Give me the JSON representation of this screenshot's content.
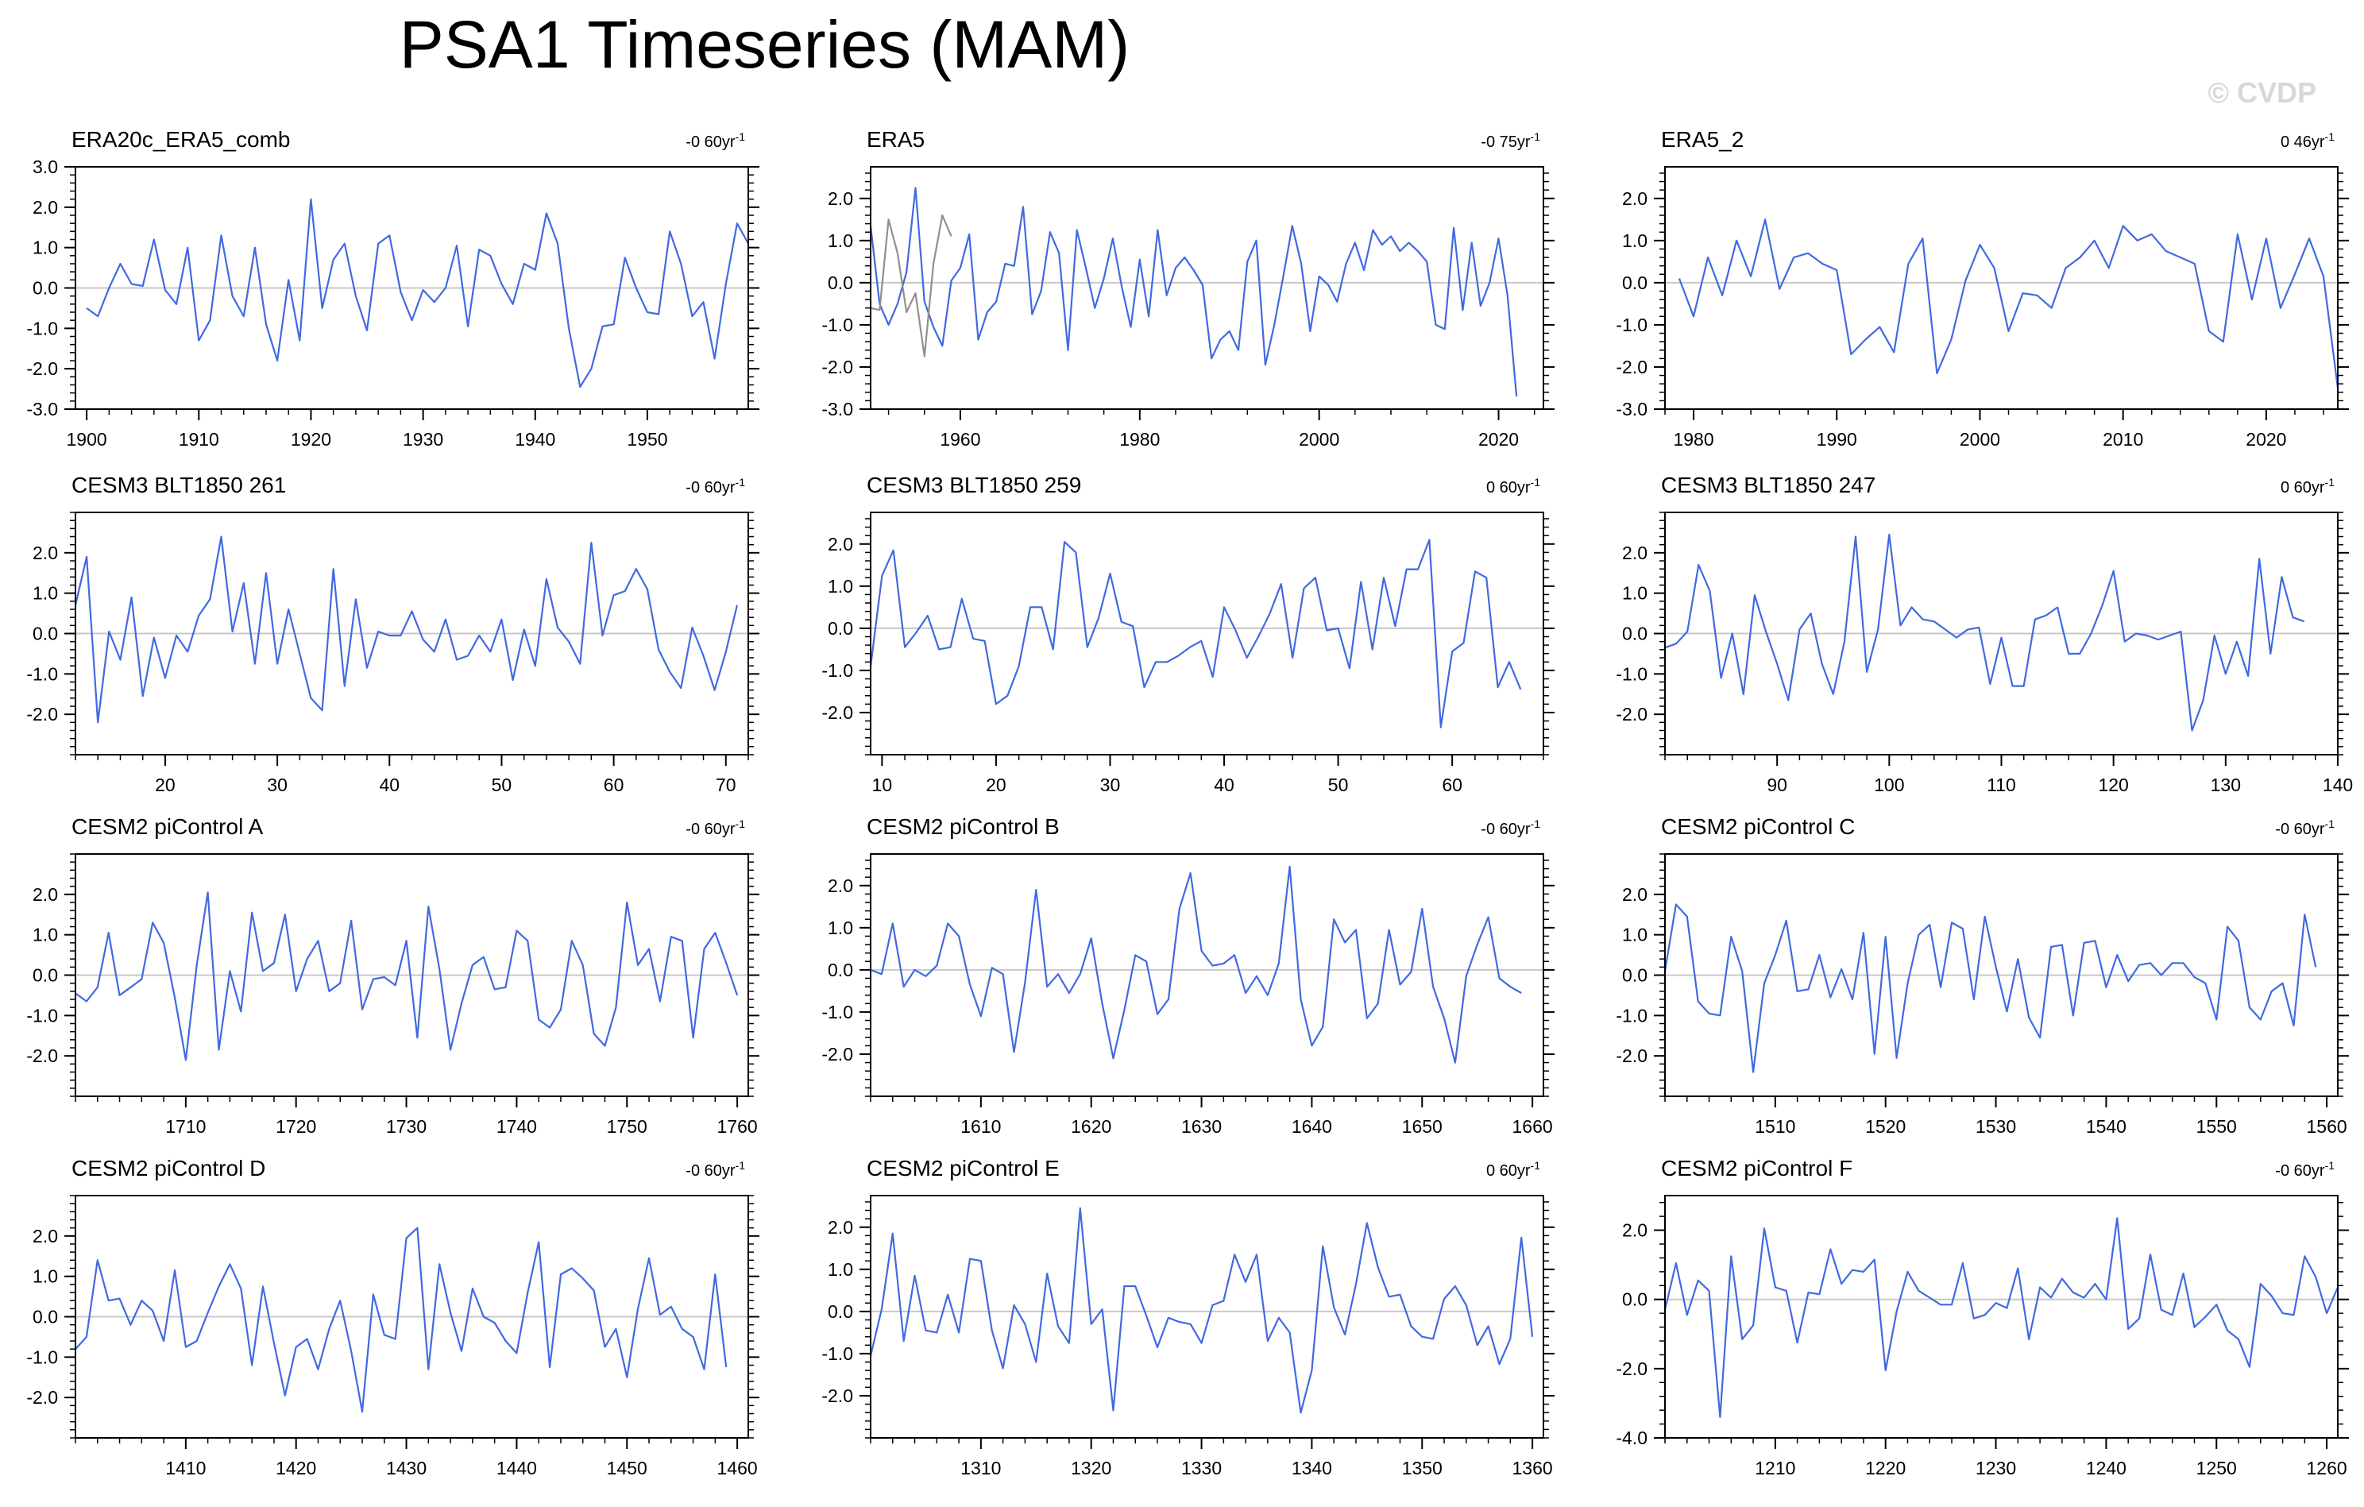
{
  "title": "PSA1 Timeseries (MAM)",
  "watermark": "© CVDP",
  "colors": {
    "line": "#4169e1",
    "ref_line": "#909090",
    "zero": "#c8c8c8",
    "axis": "#000000"
  },
  "chart_data": [
    {
      "type": "line",
      "title": "ERA20c_ERA5_comb",
      "trend": "-0 60yr",
      "xlim": [
        1899,
        1959
      ],
      "ylim": [
        -3,
        3
      ],
      "xticks": [
        1900,
        1910,
        1920,
        1930,
        1940,
        1950
      ],
      "yticks": [
        -3,
        -2,
        -1,
        0,
        1,
        2,
        3
      ],
      "series": [
        {
          "x0": 1900,
          "values": [
            -0.5,
            -0.7,
            0,
            0.6,
            0.1,
            0.05,
            1.2,
            -0.05,
            -0.4,
            1.0,
            -1.3,
            -0.8,
            1.3,
            -0.2,
            -0.7,
            1.0,
            -0.9,
            -1.8,
            0.2,
            -1.3,
            2.2,
            -0.5,
            0.7,
            1.1,
            -0.2,
            -1.05,
            1.1,
            1.3,
            -0.1,
            -0.8,
            -0.05,
            -0.35,
            0,
            1.05,
            -0.95,
            0.95,
            0.8,
            0.1,
            -0.4,
            0.6,
            0.45,
            1.85,
            1.1,
            -1.0,
            -2.45,
            -2.0,
            -0.95,
            -0.9,
            0.75,
            0,
            -0.6,
            -0.65,
            1.4,
            0.6,
            -0.7,
            -0.35,
            -1.75,
            0.1,
            1.6,
            1.1
          ]
        }
      ]
    },
    {
      "type": "line",
      "title": "ERA5",
      "trend": "-0 75yr",
      "xlim": [
        1950,
        2025
      ],
      "ylim": [
        -3,
        2.75
      ],
      "xticks": [
        1960,
        1980,
        2000,
        2020
      ],
      "yticks": [
        -3,
        -2,
        -1,
        0,
        1,
        2
      ],
      "series": [
        {
          "x0": 1950,
          "values": [
            1.35,
            -0.5,
            -1.0,
            -0.5,
            0.25,
            2.25,
            -0.45,
            -1.05,
            -1.5,
            0.05,
            0.35,
            1.15,
            -1.35,
            -0.7,
            -0.45,
            0.45,
            0.4,
            1.8,
            -0.75,
            -0.2,
            1.2,
            0.7,
            -1.6,
            1.25,
            0.35,
            -0.6,
            0.1,
            1.05,
            -0.1,
            -1.05,
            0.55,
            -0.8,
            1.25,
            -0.3,
            0.35,
            0.6,
            0.3,
            -0.05,
            -1.8,
            -1.35,
            -1.15,
            -1.6,
            0.5,
            1.0,
            -1.95,
            -1.0,
            0.15,
            1.35,
            0.45,
            -1.15,
            0.15,
            -0.05,
            -0.45,
            0.45,
            0.95,
            0.3,
            1.25,
            0.9,
            1.1,
            0.75,
            0.95,
            0.75,
            0.5,
            -1.0,
            -1.1,
            1.3,
            -0.65,
            0.95,
            -0.55,
            0,
            1.05,
            -0.3,
            -2.7
          ]
        },
        {
          "x0": 1950,
          "values": [
            -0.6,
            -0.65,
            1.5,
            0.7,
            -0.7,
            -0.25,
            -1.75,
            0.45,
            1.6,
            1.1
          ]
        }
      ]
    },
    {
      "type": "line",
      "title": "ERA5_2",
      "trend": "0 46yr",
      "xlim": [
        1978,
        2025
      ],
      "ylim": [
        -3,
        2.75
      ],
      "xticks": [
        1980,
        1990,
        2000,
        2010,
        2020
      ],
      "yticks": [
        -3,
        -2,
        -1,
        0,
        1,
        2
      ],
      "series": [
        {
          "x0": 1979,
          "values": [
            0.1,
            -0.8,
            0.6,
            -0.3,
            1.0,
            0.15,
            1.5,
            -0.15,
            0.6,
            0.7,
            0.45,
            0.3,
            -1.7,
            -1.35,
            -1.05,
            -1.65,
            0.45,
            1.05,
            -2.15,
            -1.35,
            0.05,
            0.9,
            0.35,
            -1.15,
            -0.25,
            -0.3,
            -0.6,
            0.35,
            0.6,
            1.0,
            0.35,
            1.35,
            1.0,
            1.15,
            0.75,
            0.6,
            0.45,
            -1.15,
            -1.4,
            1.15,
            -0.4,
            1.05,
            -0.6,
            0.2,
            1.05,
            0.15,
            -2.5
          ]
        }
      ]
    },
    {
      "type": "line",
      "title": "CESM3 BLT1850 261",
      "trend": "-0 60yr",
      "xlim": [
        12,
        72
      ],
      "ylim": [
        -3,
        3
      ],
      "xticks": [
        20,
        30,
        40,
        50,
        60,
        70
      ],
      "yticks": [
        -2,
        -1,
        0,
        1,
        2
      ],
      "series": [
        {
          "x0": 12,
          "values": [
            0.7,
            1.9,
            -2.2,
            0.05,
            -0.65,
            0.9,
            -1.55,
            -0.1,
            -1.1,
            -0.05,
            -0.45,
            0.45,
            0.85,
            2.4,
            0.05,
            1.25,
            -0.75,
            1.5,
            -0.75,
            0.6,
            -0.5,
            -1.6,
            -1.9,
            1.6,
            -1.3,
            0.85,
            -0.85,
            0.05,
            -0.05,
            -0.05,
            0.55,
            -0.15,
            -0.45,
            0.35,
            -0.65,
            -0.55,
            -0.05,
            -0.45,
            0.35,
            -1.15,
            0.1,
            -0.8,
            1.35,
            0.15,
            -0.2,
            -0.75,
            2.25,
            -0.05,
            0.95,
            1.05,
            1.6,
            1.1,
            -0.4,
            -0.95,
            -1.35,
            0.15,
            -0.55,
            -1.4,
            -0.45,
            0.7
          ]
        }
      ]
    },
    {
      "type": "line",
      "title": "CESM3 BLT1850 259",
      "trend": "0 60yr",
      "xlim": [
        9,
        68
      ],
      "ylim": [
        -3,
        2.75
      ],
      "xticks": [
        10,
        20,
        30,
        40,
        50,
        60
      ],
      "yticks": [
        -2,
        -1,
        0,
        1,
        2
      ],
      "series": [
        {
          "x0": 9,
          "values": [
            -0.9,
            1.25,
            1.85,
            -0.45,
            -0.1,
            0.3,
            -0.5,
            -0.45,
            0.7,
            -0.25,
            -0.3,
            -1.8,
            -1.6,
            -0.9,
            0.5,
            0.5,
            -0.5,
            2.05,
            1.8,
            -0.45,
            0.25,
            1.3,
            0.15,
            0.05,
            -1.4,
            -0.8,
            -0.8,
            -0.65,
            -0.45,
            -0.3,
            -1.15,
            0.5,
            -0.05,
            -0.7,
            -0.2,
            0.35,
            1.05,
            -0.7,
            0.95,
            1.2,
            -0.05,
            0,
            -0.95,
            1.1,
            -0.5,
            1.2,
            0.05,
            1.4,
            1.4,
            2.1,
            -2.35,
            -0.55,
            -0.35,
            1.35,
            1.2,
            -1.4,
            -0.8,
            -1.45
          ]
        }
      ]
    },
    {
      "type": "line",
      "title": "CESM3 BLT1850 247",
      "trend": "0 60yr",
      "xlim": [
        80,
        140
      ],
      "ylim": [
        -3,
        3
      ],
      "xticks": [
        90,
        100,
        110,
        120,
        130,
        140
      ],
      "yticks": [
        -2,
        -1,
        0,
        1,
        2
      ],
      "series": [
        {
          "x0": 80,
          "values": [
            -0.35,
            -0.25,
            0.05,
            1.7,
            1.05,
            -1.1,
            0,
            -1.5,
            0.95,
            0.05,
            -0.75,
            -1.65,
            0.1,
            0.5,
            -0.75,
            -1.5,
            -0.2,
            2.4,
            -0.95,
            0.1,
            2.45,
            0.2,
            0.65,
            0.35,
            0.3,
            0.1,
            -0.1,
            0.1,
            0.15,
            -1.25,
            -0.1,
            -1.3,
            -1.3,
            0.35,
            0.45,
            0.65,
            -0.5,
            -0.5,
            0,
            0.7,
            1.55,
            -0.2,
            0,
            -0.05,
            -0.15,
            -0.05,
            0.05,
            -2.4,
            -1.65,
            -0.05,
            -1.0,
            -0.2,
            -1.05,
            1.85,
            -0.5,
            1.4,
            0.4,
            0.3
          ]
        }
      ]
    },
    {
      "type": "line",
      "title": "CESM2 piControl A",
      "trend": "-0 60yr",
      "xlim": [
        1700,
        1761
      ],
      "ylim": [
        -3,
        3
      ],
      "xticks": [
        1710,
        1720,
        1730,
        1740,
        1750,
        1760
      ],
      "yticks": [
        -2,
        -1,
        0,
        1,
        2
      ],
      "series": [
        {
          "x0": 1700,
          "values": [
            -0.45,
            -0.65,
            -0.3,
            1.05,
            -0.5,
            -0.3,
            -0.1,
            1.3,
            0.8,
            -0.55,
            -2.1,
            0.25,
            2.05,
            -1.85,
            0.1,
            -0.9,
            1.55,
            0.1,
            0.3,
            1.5,
            -0.4,
            0.4,
            0.85,
            -0.4,
            -0.2,
            1.35,
            -0.85,
            -0.1,
            -0.05,
            -0.25,
            0.85,
            -1.55,
            1.7,
            0.15,
            -1.85,
            -0.7,
            0.25,
            0.45,
            -0.35,
            -0.3,
            1.1,
            0.85,
            -1.1,
            -1.3,
            -0.85,
            0.85,
            0.25,
            -1.45,
            -1.75,
            -0.8,
            1.8,
            0.25,
            0.65,
            -0.65,
            0.95,
            0.85,
            -1.55,
            0.65,
            1.05,
            0.3,
            -0.5
          ]
        }
      ]
    },
    {
      "type": "line",
      "title": "CESM2 piControl B",
      "trend": "-0 60yr",
      "xlim": [
        1600,
        1661
      ],
      "ylim": [
        -3,
        2.75
      ],
      "xticks": [
        1610,
        1620,
        1630,
        1640,
        1650,
        1660
      ],
      "yticks": [
        -2,
        -1,
        0,
        1,
        2
      ],
      "series": [
        {
          "x0": 1600,
          "values": [
            0,
            -0.1,
            1.1,
            -0.4,
            0,
            -0.15,
            0.1,
            1.1,
            0.8,
            -0.35,
            -1.1,
            0.05,
            -0.1,
            -1.95,
            -0.3,
            1.9,
            -0.4,
            -0.1,
            -0.55,
            -0.1,
            0.75,
            -0.8,
            -2.1,
            -0.95,
            0.35,
            0.2,
            -1.05,
            -0.7,
            1.45,
            2.3,
            0.45,
            0.1,
            0.15,
            0.35,
            -0.55,
            -0.15,
            -0.6,
            0.15,
            2.45,
            -0.7,
            -1.8,
            -1.35,
            1.2,
            0.65,
            0.95,
            -1.15,
            -0.8,
            0.95,
            -0.35,
            -0.05,
            1.45,
            -0.4,
            -1.15,
            -2.2,
            -0.15,
            0.6,
            1.25,
            -0.2,
            -0.4,
            -0.55
          ]
        }
      ]
    },
    {
      "type": "line",
      "title": "CESM2 piControl C",
      "trend": "-0 60yr",
      "xlim": [
        1500,
        1561
      ],
      "ylim": [
        -3,
        3
      ],
      "xticks": [
        1510,
        1520,
        1530,
        1540,
        1550,
        1560
      ],
      "yticks": [
        -2,
        -1,
        0,
        1,
        2
      ],
      "series": [
        {
          "x0": 1500,
          "values": [
            0.1,
            1.75,
            1.45,
            -0.65,
            -0.95,
            -1.0,
            0.95,
            0.1,
            -2.4,
            -0.2,
            0.5,
            1.35,
            -0.4,
            -0.35,
            0.5,
            -0.55,
            0.15,
            -0.6,
            1.05,
            -1.95,
            0.95,
            -2.05,
            -0.2,
            1.0,
            1.25,
            -0.3,
            1.3,
            1.15,
            -0.6,
            1.45,
            0.2,
            -0.9,
            0.4,
            -1.05,
            -1.55,
            0.7,
            0.75,
            -1.0,
            0.8,
            0.85,
            -0.3,
            0.5,
            -0.15,
            0.25,
            0.3,
            0,
            0.3,
            0.3,
            -0.05,
            -0.2,
            -1.1,
            1.2,
            0.85,
            -0.8,
            -1.1,
            -0.4,
            -0.2,
            -1.25,
            1.5,
            0.2
          ]
        }
      ]
    },
    {
      "type": "line",
      "title": "CESM2 piControl D",
      "trend": "-0 60yr",
      "xlim": [
        1400,
        1461
      ],
      "ylim": [
        -3,
        3
      ],
      "xticks": [
        1410,
        1420,
        1430,
        1440,
        1450,
        1460
      ],
      "yticks": [
        -2,
        -1,
        0,
        1,
        2
      ],
      "series": [
        {
          "x0": 1400,
          "values": [
            -0.8,
            -0.5,
            1.4,
            0.4,
            0.45,
            -0.2,
            0.4,
            0.15,
            -0.6,
            1.15,
            -0.75,
            -0.6,
            0.1,
            0.75,
            1.3,
            0.7,
            -1.2,
            0.75,
            -0.65,
            -1.95,
            -0.75,
            -0.55,
            -1.3,
            -0.3,
            0.4,
            -0.85,
            -2.35,
            0.55,
            -0.45,
            -0.55,
            1.95,
            2.2,
            -1.3,
            1.3,
            0.1,
            -0.85,
            0.7,
            0,
            -0.15,
            -0.6,
            -0.9,
            0.6,
            1.85,
            -1.25,
            1.05,
            1.2,
            0.95,
            0.65,
            -0.75,
            -0.3,
            -1.5,
            0.2,
            1.45,
            0.05,
            0.25,
            -0.3,
            -0.5,
            -1.3,
            1.05,
            -1.25
          ]
        }
      ]
    },
    {
      "type": "line",
      "title": "CESM2 piControl E",
      "trend": "0 60yr",
      "xlim": [
        1300,
        1361
      ],
      "ylim": [
        -3,
        2.75
      ],
      "xticks": [
        1310,
        1320,
        1330,
        1340,
        1350,
        1360
      ],
      "yticks": [
        -2,
        -1,
        0,
        1,
        2
      ],
      "series": [
        {
          "x0": 1300,
          "values": [
            -1.05,
            0.05,
            1.85,
            -0.7,
            0.85,
            -0.45,
            -0.5,
            0.4,
            -0.5,
            1.25,
            1.2,
            -0.45,
            -1.35,
            0.15,
            -0.3,
            -1.2,
            0.9,
            -0.35,
            -0.75,
            2.45,
            -0.3,
            0.05,
            -2.35,
            0.6,
            0.6,
            -0.1,
            -0.85,
            -0.15,
            -0.25,
            -0.3,
            -0.75,
            0.15,
            0.25,
            1.35,
            0.7,
            1.35,
            -0.7,
            -0.15,
            -0.5,
            -2.4,
            -1.4,
            1.55,
            0.1,
            -0.55,
            0.65,
            2.1,
            1.05,
            0.35,
            0.4,
            -0.35,
            -0.6,
            -0.65,
            0.3,
            0.6,
            0.15,
            -0.8,
            -0.35,
            -1.25,
            -0.65,
            1.75,
            -0.6
          ]
        }
      ]
    },
    {
      "type": "line",
      "title": "CESM2 piControl F",
      "trend": "-0 60yr",
      "xlim": [
        1200,
        1261
      ],
      "ylim": [
        -4,
        3
      ],
      "xticks": [
        1210,
        1220,
        1230,
        1240,
        1250,
        1260
      ],
      "yticks": [
        -4,
        -2,
        0,
        2
      ],
      "series": [
        {
          "x0": 1200,
          "values": [
            -0.3,
            1.05,
            -0.45,
            0.55,
            0.25,
            -3.4,
            1.25,
            -1.15,
            -0.75,
            2.05,
            0.35,
            0.25,
            -1.25,
            0.2,
            0.15,
            1.45,
            0.45,
            0.85,
            0.8,
            1.15,
            -2.05,
            -0.35,
            0.8,
            0.25,
            0.05,
            -0.15,
            -0.15,
            1.05,
            -0.55,
            -0.45,
            -0.1,
            -0.25,
            0.9,
            -1.15,
            0.35,
            0.05,
            0.6,
            0.2,
            0.05,
            0.45,
            0,
            2.35,
            -0.85,
            -0.55,
            1.3,
            -0.3,
            -0.45,
            0.75,
            -0.8,
            -0.5,
            -0.15,
            -0.9,
            -1.15,
            -1.95,
            0.45,
            0.1,
            -0.4,
            -0.45,
            1.25,
            0.65,
            -0.4,
            0.35
          ]
        }
      ]
    }
  ]
}
